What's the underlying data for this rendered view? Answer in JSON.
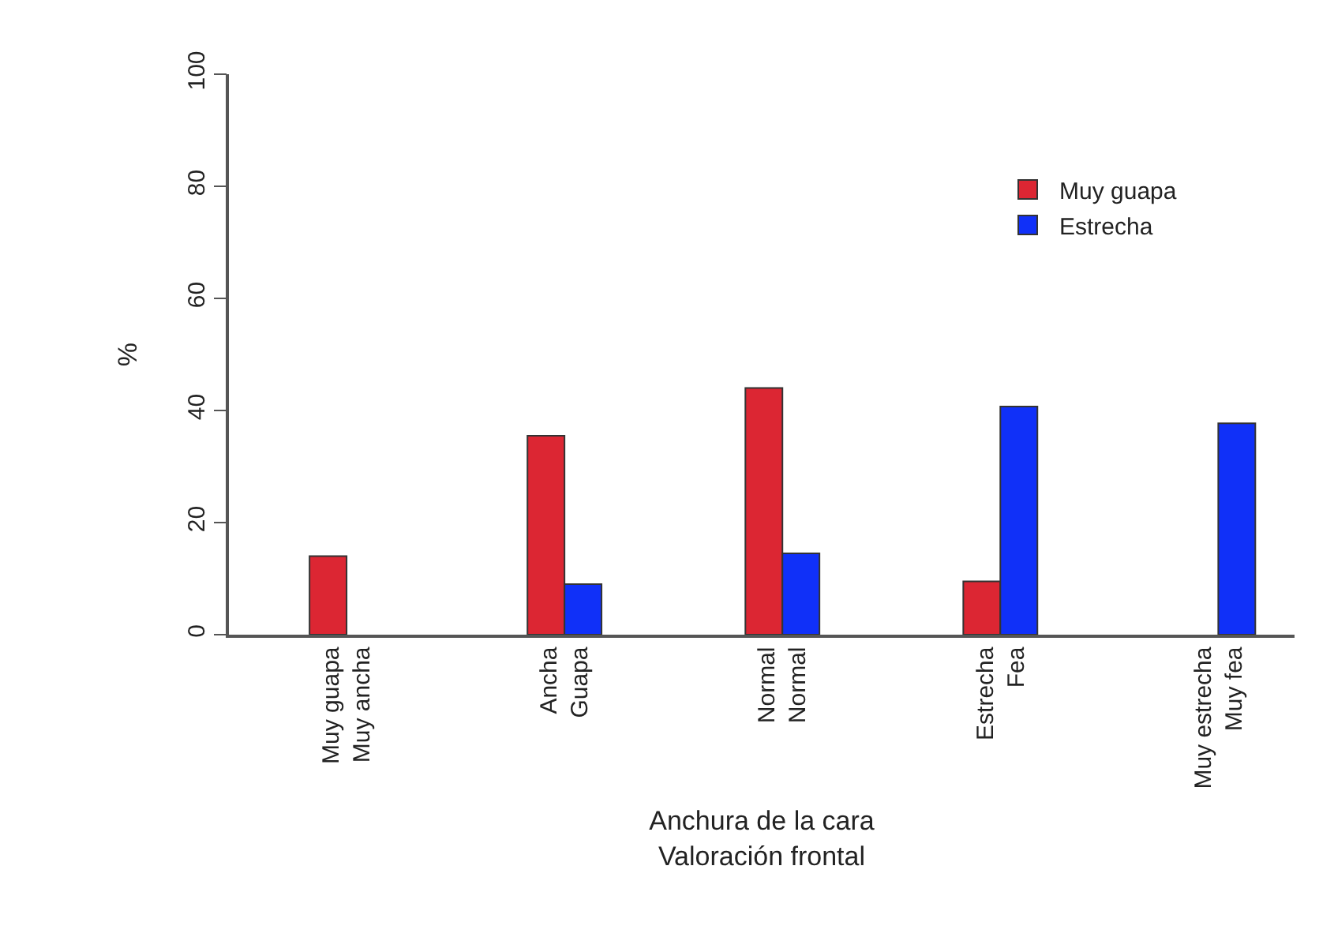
{
  "chart_data": {
    "type": "bar",
    "xlabel": "Anchura de la cara\nValoración frontal",
    "ylabel": "%",
    "categories": [
      "Muy guapa\nMuy ancha",
      "Ancha\nGuapa",
      "Normal\nNormal",
      "Estrecha\nFea",
      "Muy estrecha\nMuy fea"
    ],
    "series": [
      {
        "name": "Muy guapa",
        "color": "#dc2633",
        "values": [
          14,
          35.5,
          44,
          9.5,
          null
        ]
      },
      {
        "name": "Estrecha",
        "color": "#1030f8",
        "values": [
          null,
          9,
          14.5,
          40.7,
          37.7
        ]
      }
    ],
    "ylim": [
      0,
      100
    ],
    "yticks": [
      0,
      20,
      40,
      60,
      80,
      100
    ],
    "legend": "top right"
  }
}
